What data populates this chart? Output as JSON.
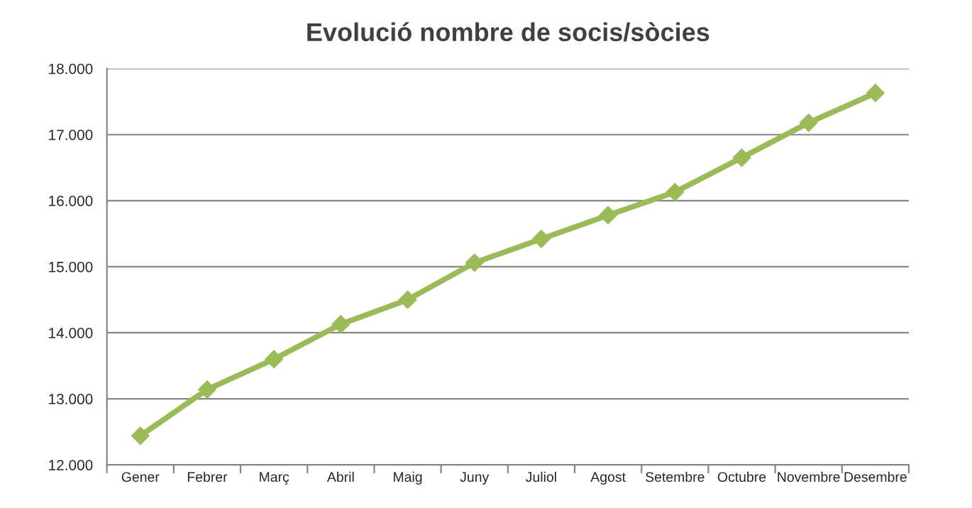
{
  "chart_data": {
    "type": "line",
    "title": "Evolució nombre de socis/sòcies",
    "categories": [
      "Gener",
      "Febrer",
      "Març",
      "Abril",
      "Maig",
      "Juny",
      "Juliol",
      "Agost",
      "Setembre",
      "Octubre",
      "Novembre",
      "Desembre"
    ],
    "series": [
      {
        "color": "#9bbb59",
        "values": [
          12440,
          13140,
          13600,
          14130,
          14500,
          15060,
          15420,
          15780,
          16130,
          16650,
          17180,
          17630
        ]
      }
    ],
    "ylim": [
      12000,
      18000
    ],
    "yticks": [
      {
        "value": 12000,
        "label": "12.000"
      },
      {
        "value": 13000,
        "label": "13.000"
      },
      {
        "value": 14000,
        "label": "14.000"
      },
      {
        "value": 15000,
        "label": "15.000"
      },
      {
        "value": 16000,
        "label": "16.000"
      },
      {
        "value": 17000,
        "label": "17.000"
      },
      {
        "value": 18000,
        "label": "18.000"
      }
    ],
    "grid": "y",
    "marker": "diamond",
    "line_style": "solid"
  }
}
